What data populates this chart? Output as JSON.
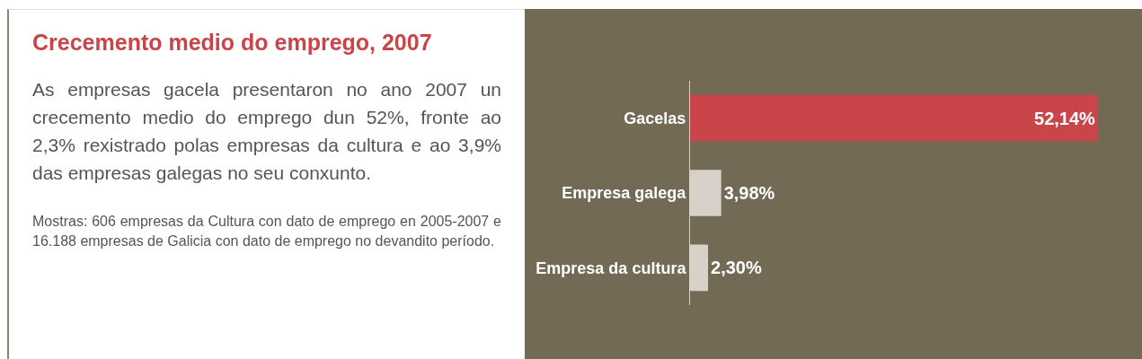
{
  "chart_data": {
    "type": "bar",
    "orientation": "horizontal",
    "title": "Crecemento medio do emprego, 2007",
    "subtitle": "As empresas gacela presentaron no ano 2007 un crecemento medio do emprego dun 52%, fronte ao 2,3% rexistrado polas empresas da cultura e ao 3,9% das empresas galegas no seu conxunto.",
    "annotations": [
      "Mostras: 606 empresas da Cultura con dato de emprego en 2005-2007 e 16.188 empresas de Galicia con dato de emprego no devandito período."
    ],
    "categories": [
      "Gacelas",
      "Empresa galega",
      "Empresa da cultura"
    ],
    "values": [
      52.14,
      3.98,
      2.3
    ],
    "colors": [
      "#c9454a",
      "#d7d1c9",
      "#d7d1c9"
    ],
    "value_labels": [
      "52,14%",
      "3,98%",
      "2,30%"
    ],
    "tick_labels": "y"
  }
}
